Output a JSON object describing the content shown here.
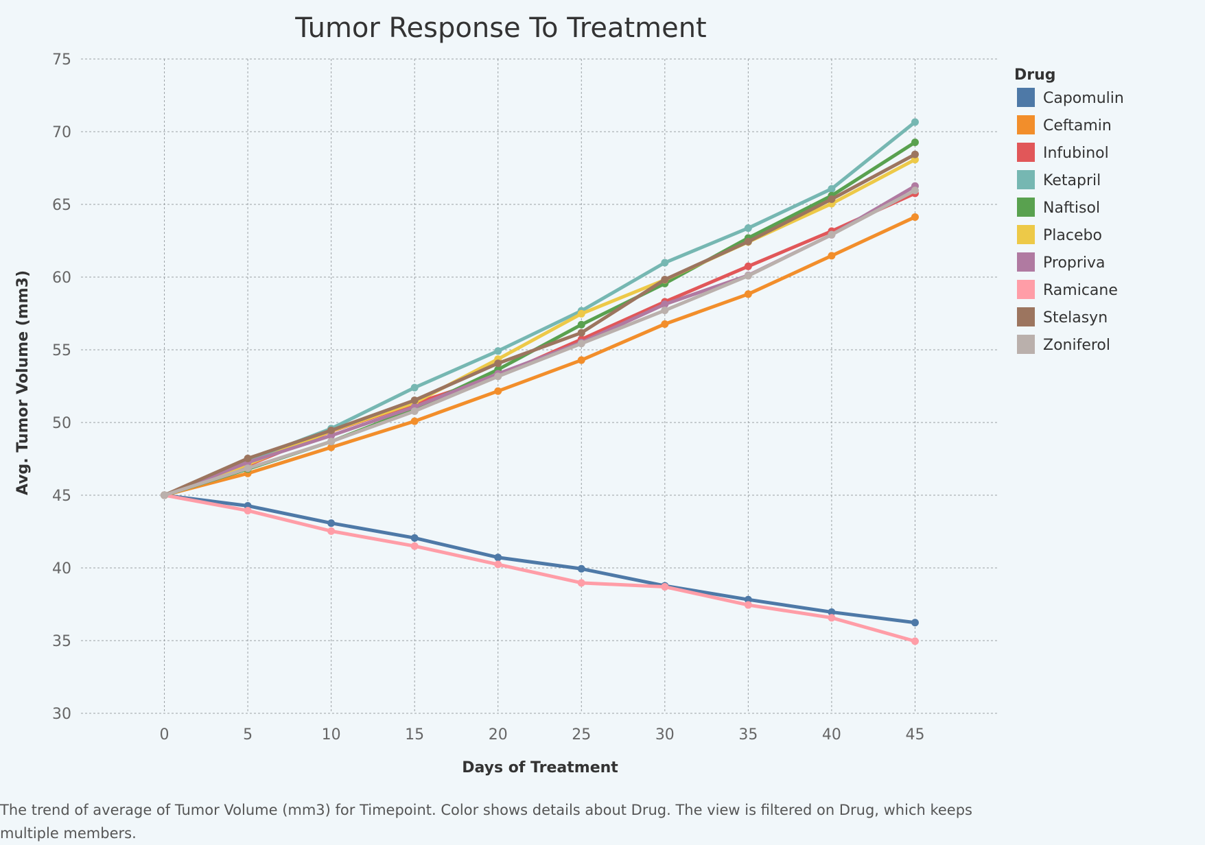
{
  "chart_data": {
    "type": "line",
    "title": "Tumor Response To Treatment",
    "xlabel": "Days of Treatment",
    "ylabel": "Avg. Tumor Volume (mm3)",
    "x": [
      0,
      5,
      10,
      15,
      20,
      25,
      30,
      35,
      40,
      45
    ],
    "xlim": [
      -5,
      50
    ],
    "ylim": [
      30,
      75
    ],
    "xticks": [
      0,
      5,
      10,
      15,
      20,
      25,
      30,
      35,
      40,
      45
    ],
    "yticks": [
      30,
      35,
      40,
      45,
      50,
      55,
      60,
      65,
      70,
      75
    ],
    "grid": true,
    "legend": {
      "title": "Drug",
      "position": "right"
    },
    "series": [
      {
        "name": "Capomulin",
        "color": "#4e79a7",
        "values": [
          45.0,
          44.27,
          43.08,
          42.06,
          40.72,
          39.94,
          38.77,
          37.82,
          36.96,
          36.24
        ]
      },
      {
        "name": "Ceftamin",
        "color": "#f28e2b",
        "values": [
          45.0,
          46.5,
          48.29,
          50.09,
          52.16,
          54.29,
          56.77,
          58.83,
          61.47,
          64.13
        ]
      },
      {
        "name": "Infubinol",
        "color": "#e15759",
        "values": [
          45.0,
          47.06,
          49.4,
          51.3,
          53.2,
          55.72,
          58.3,
          60.74,
          63.16,
          65.76
        ]
      },
      {
        "name": "Ketapril",
        "color": "#76b7b2",
        "values": [
          45.0,
          47.39,
          49.58,
          52.4,
          54.92,
          57.68,
          60.99,
          63.37,
          66.07,
          70.66
        ]
      },
      {
        "name": "Naftisol",
        "color": "#59a14f",
        "values": [
          45.0,
          46.8,
          48.69,
          50.93,
          53.64,
          56.73,
          59.56,
          62.69,
          65.6,
          69.27
        ]
      },
      {
        "name": "Placebo",
        "color": "#edc948",
        "values": [
          45.0,
          47.13,
          49.42,
          51.36,
          54.36,
          57.48,
          59.81,
          62.42,
          65.05,
          68.08
        ]
      },
      {
        "name": "Propriva",
        "color": "#b07aa1",
        "values": [
          45.0,
          47.25,
          49.1,
          51.07,
          53.35,
          55.5,
          58.13,
          60.12,
          62.91,
          66.26
        ]
      },
      {
        "name": "Ramicane",
        "color": "#ff9da7",
        "values": [
          45.0,
          43.94,
          42.53,
          41.5,
          40.24,
          38.97,
          38.7,
          37.45,
          36.57,
          34.96
        ]
      },
      {
        "name": "Stelasyn",
        "color": "#9c755f",
        "values": [
          45.0,
          47.53,
          49.46,
          51.53,
          54.07,
          56.17,
          59.83,
          62.44,
          65.36,
          68.44
        ]
      },
      {
        "name": "Zoniferol",
        "color": "#bab0ac",
        "values": [
          45.0,
          46.85,
          48.69,
          50.78,
          53.17,
          55.43,
          57.71,
          60.09,
          62.92,
          65.96
        ]
      }
    ]
  },
  "caption": "The trend of average of Tumor Volume (mm3) for Timepoint.  Color shows details about Drug. The view is filtered on Drug, which keeps multiple members."
}
